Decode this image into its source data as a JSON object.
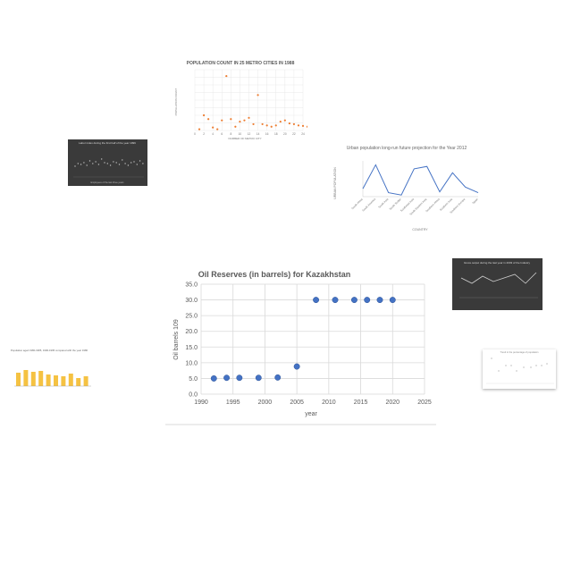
{
  "thumbnails": {
    "pop_metro": {
      "title": "POPULATION COUNT IN 25 METRO CITIES IN 1988",
      "xlabel": "NUMBER OF METRO CITY",
      "ylabel": "POPULATION COUNT",
      "x_ticks": [
        "0",
        "2",
        "4",
        "6",
        "8",
        "10",
        "12",
        "14",
        "16",
        "18",
        "20",
        "22",
        "24"
      ],
      "points": [
        [
          1,
          5
        ],
        [
          2,
          60
        ],
        [
          3,
          45
        ],
        [
          4,
          12
        ],
        [
          5,
          5
        ],
        [
          6,
          40
        ],
        [
          7,
          215
        ],
        [
          8,
          45
        ],
        [
          9,
          15
        ],
        [
          10,
          35
        ],
        [
          11,
          40
        ],
        [
          12,
          50
        ],
        [
          13,
          25
        ],
        [
          14,
          140
        ],
        [
          15,
          25
        ],
        [
          16,
          20
        ],
        [
          17,
          15
        ],
        [
          18,
          20
        ],
        [
          19,
          35
        ],
        [
          20,
          40
        ],
        [
          21,
          28
        ],
        [
          22,
          25
        ],
        [
          23,
          20
        ],
        [
          24,
          18
        ],
        [
          25,
          15
        ]
      ]
    },
    "urban_pop": {
      "title": "Urban population long-run future projection for the Year 2012",
      "xlabel": "COUNTRY",
      "ylabel": "URBAN POPULATION",
      "categories": [
        "South Africa",
        "South America",
        "South Asia",
        "South Sudan",
        "Southeast Asia",
        "South Eastern Asia",
        "Southern Africa",
        "Southern Asia",
        "Southern Europe",
        "Spain"
      ],
      "values": [
        1.0,
        4.0,
        0.5,
        0.2,
        3.5,
        3.8,
        0.6,
        3.0,
        1.2,
        0.5
      ]
    },
    "dark_scatter": {
      "title": "Labor index during the first half of the year 1999",
      "xlabel": "Employees of the last three years"
    },
    "dark_line": {
      "title": "Gross output during the last year in 2003 of the Industry"
    },
    "yellow_bar": {
      "title": "Population aged 1980-1985, 1990-1995 compared with the year 1980",
      "values": [
        3.0,
        3.6,
        3.2,
        3.4,
        2.6,
        2.4,
        2.2,
        2.8,
        1.8,
        2.2
      ]
    },
    "right_scatter": {
      "title": "Trend in the percentage of population"
    }
  },
  "chart_data": {
    "type": "scatter",
    "title": "Oil Reserves (in barrels) for Kazakhstan",
    "xlabel": "year",
    "ylabel": "Oil barrels 109",
    "xlim": [
      1990,
      2025
    ],
    "ylim": [
      0,
      35
    ],
    "x_ticks": [
      "1990",
      "1995",
      "2000",
      "2005",
      "2010",
      "2015",
      "2020",
      "2025"
    ],
    "y_ticks": [
      "0.0",
      "5.0",
      "10.0",
      "15.0",
      "20.0",
      "25.0",
      "30.0",
      "35.0"
    ],
    "grid": true,
    "point_color": "#4472c4",
    "x": [
      1992,
      1994,
      1996,
      1999,
      2002,
      2005,
      2008,
      2011,
      2014,
      2016,
      2018,
      2020
    ],
    "y": [
      5.0,
      5.2,
      5.2,
      5.2,
      5.3,
      8.8,
      30.0,
      30.0,
      30.0,
      30.0,
      30.0,
      30.0
    ]
  }
}
